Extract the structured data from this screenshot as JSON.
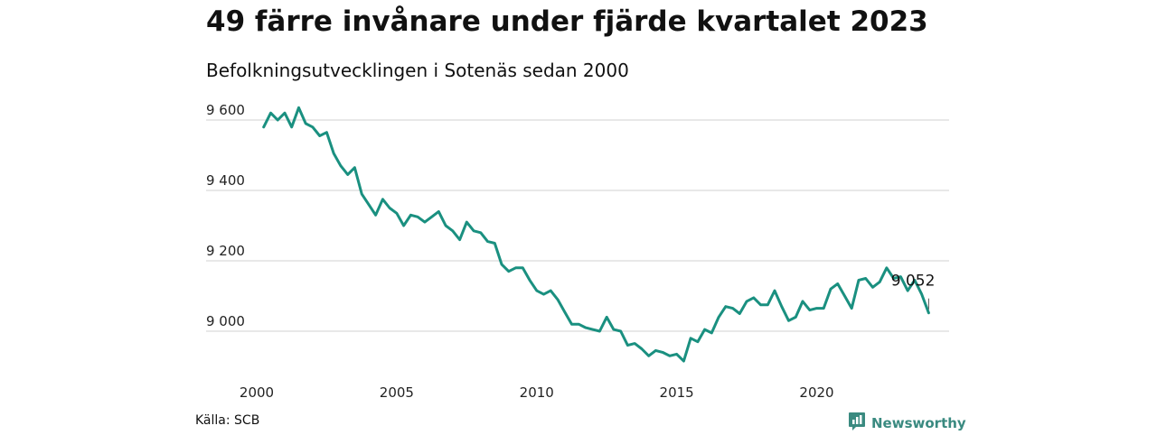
{
  "title": "49 färre invånare under fjärde kvartalet 2023",
  "subtitle": "Befolkningsutvecklingen i Sotenäs sedan 2000",
  "source": "Källa: SCB",
  "brand": {
    "name": "Newsworthy",
    "icon": "newsworthy-logo-icon",
    "color": "#3a8a80"
  },
  "colors": {
    "line": "#1a9080",
    "grid": "#d9d9d9"
  },
  "chart_data": {
    "type": "line",
    "title": "49 färre invånare under fjärde kvartalet 2023",
    "subtitle": "Befolkningsutvecklingen i Sotenäs sedan 2000",
    "xlabel": "",
    "ylabel": "",
    "x_ticks": [
      "2000",
      "2005",
      "2010",
      "2015",
      "2020"
    ],
    "x_tick_values": [
      2000,
      2005,
      2010,
      2015,
      2020
    ],
    "y_ticks": [
      "9 000",
      "9 200",
      "9 400",
      "9 600"
    ],
    "y_tick_values": [
      9000,
      9200,
      9400,
      9600
    ],
    "xlim": [
      2000,
      2024
    ],
    "ylim": [
      8900,
      9650
    ],
    "grid": "horizontal",
    "legend": "none",
    "end_label": "9 052",
    "series": [
      {
        "x_start": 2000.25,
        "step": 0.25,
        "values": [
          9580,
          9620,
          9600,
          9620,
          9580,
          9635,
          9590,
          9580,
          9555,
          9565,
          9505,
          9470,
          9445,
          9465,
          9390,
          9360,
          9330,
          9375,
          9350,
          9335,
          9300,
          9330,
          9325,
          9310,
          9325,
          9340,
          9300,
          9285,
          9260,
          9310,
          9285,
          9280,
          9255,
          9250,
          9190,
          9170,
          9180,
          9180,
          9145,
          9115,
          9105,
          9115,
          9090,
          9055,
          9020,
          9020,
          9010,
          9005,
          9000,
          9040,
          9005,
          9000,
          8960,
          8965,
          8950,
          8930,
          8945,
          8940,
          8930,
          8935,
          8915,
          8980,
          8970,
          9005,
          8995,
          9040,
          9070,
          9065,
          9050,
          9085,
          9095,
          9075,
          9075,
          9115,
          9070,
          9030,
          9040,
          9085,
          9060,
          9065,
          9065,
          9120,
          9135,
          9100,
          9065,
          9145,
          9150,
          9125,
          9140,
          9180,
          9150,
          9155,
          9115,
          9145,
          9105,
          9052
        ]
      }
    ]
  }
}
